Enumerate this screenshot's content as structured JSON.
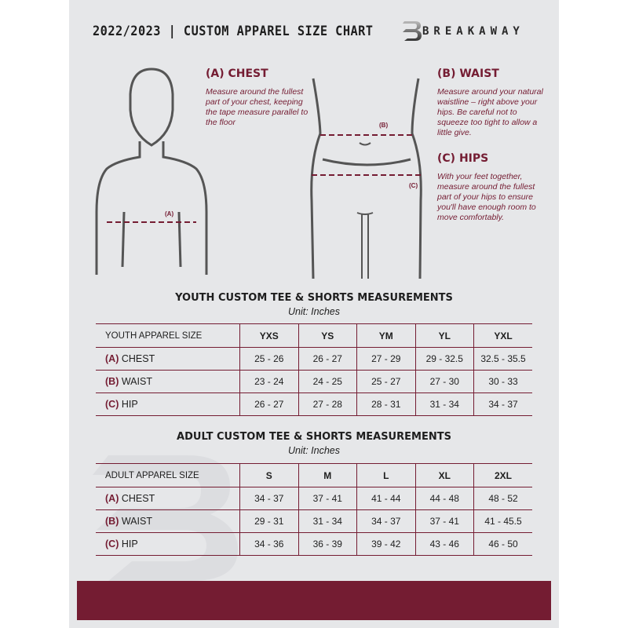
{
  "header": {
    "title": "2022/2023  |  CUSTOM APPAREL SIZE CHART",
    "brand": "BREAKAWAY",
    "logo_letter": "B"
  },
  "measure": {
    "chest": {
      "label": "(A)",
      "title": "(A) CHEST",
      "desc": "Measure around the fullest part of your chest, keeping the tape measure parallel to the floor"
    },
    "waist": {
      "label": "(B)",
      "title": "(B) WAIST",
      "desc": "Measure around your natural waistline – right above your hips. Be careful not to squeeze too tight to allow a little give."
    },
    "hips": {
      "label": "(C)",
      "title": "(C) HIPS",
      "desc": "With your feet together, measure around the fullest part of your hips to ensure you'll have enough room to move comfortably."
    }
  },
  "youth": {
    "title": "YOUTH CUSTOM TEE & SHORTS MEASUREMENTS",
    "unit": "Unit: Inches",
    "header": [
      "YOUTH APPAREL SIZE",
      "YXS",
      "YS",
      "YM",
      "YL",
      "YXL"
    ],
    "rows": [
      {
        "letter": "(A)",
        "name": "CHEST",
        "values": [
          "25 - 26",
          "26 - 27",
          "27 - 29",
          "29 - 32.5",
          "32.5 - 35.5"
        ]
      },
      {
        "letter": "(B)",
        "name": "WAIST",
        "values": [
          "23 - 24",
          "24 - 25",
          "25 - 27",
          "27 - 30",
          "30 - 33"
        ]
      },
      {
        "letter": "(C)",
        "name": "HIP",
        "values": [
          "26 - 27",
          "27 - 28",
          "28 - 31",
          "31 - 34",
          "34 - 37"
        ]
      }
    ]
  },
  "adult": {
    "title": "ADULT CUSTOM TEE & SHORTS MEASUREMENTS",
    "unit": "Unit: Inches",
    "header": [
      "ADULT APPAREL SIZE",
      "S",
      "M",
      "L",
      "XL",
      "2XL"
    ],
    "rows": [
      {
        "letter": "(A)",
        "name": "CHEST",
        "values": [
          "34 - 37",
          "37 - 41",
          "41 - 44",
          "44 - 48",
          "48 - 52"
        ]
      },
      {
        "letter": "(B)",
        "name": "WAIST",
        "values": [
          "29 - 31",
          "31 - 34",
          "34 - 37",
          "37 - 41",
          "41 - 45.5"
        ]
      },
      {
        "letter": "(C)",
        "name": "HIP",
        "values": [
          "34 - 36",
          "36 - 39",
          "39 - 42",
          "43 - 46",
          "46 - 50"
        ]
      }
    ]
  },
  "colors": {
    "accent": "#741c32",
    "panel": "#e6e7e9",
    "text": "#1e1e1e"
  }
}
